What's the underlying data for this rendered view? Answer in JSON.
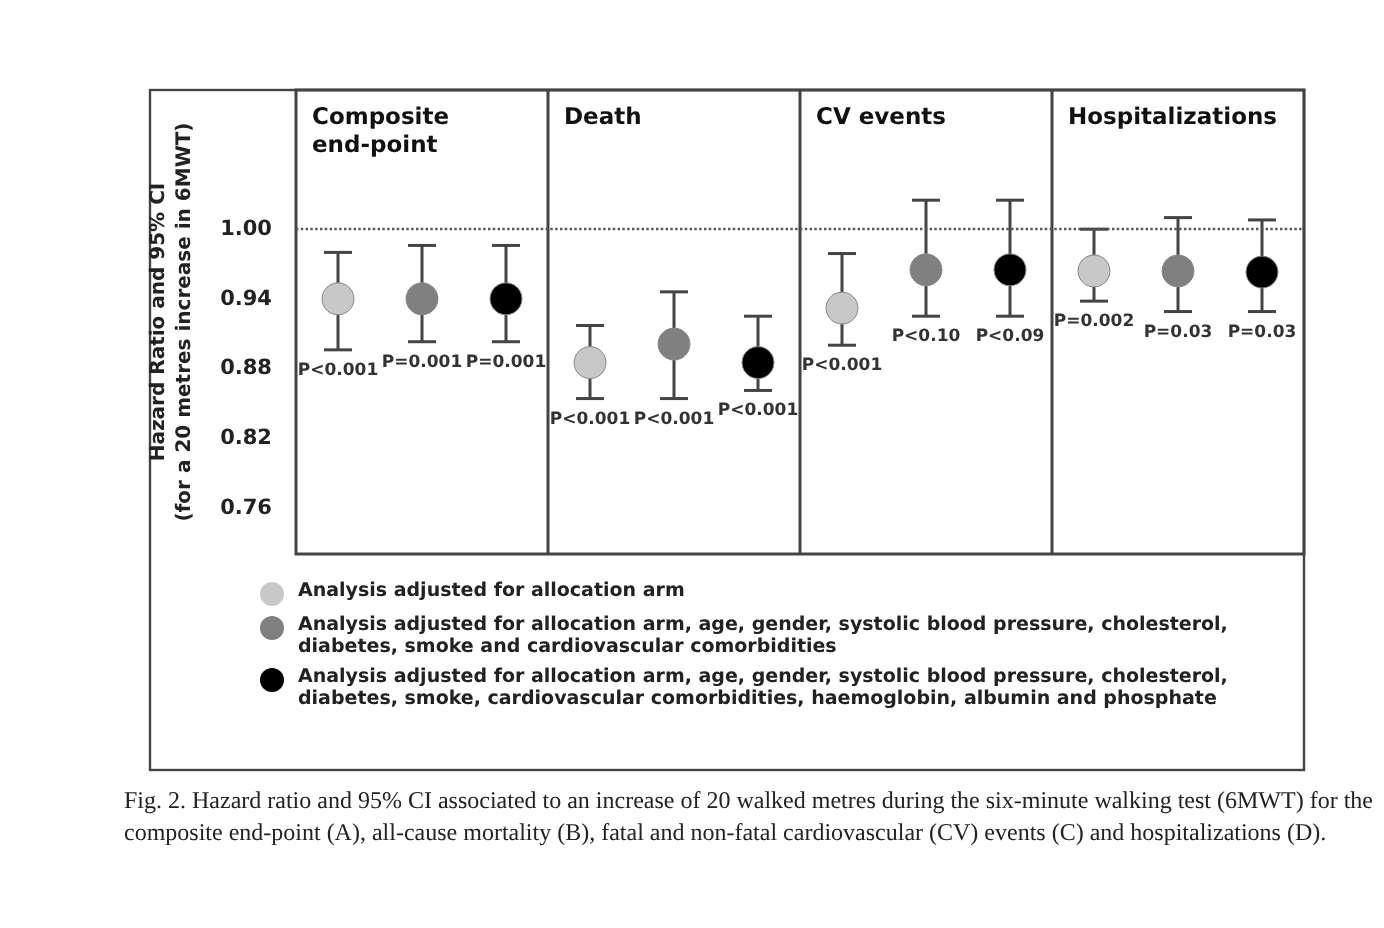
{
  "chart_data": {
    "type": "scatter",
    "ylabel": "Hazard Ratio and 95% CI\n(for a 20 metres increase in 6MWT)",
    "categories": [
      null,
      null,
      null,
      null,
      null,
      null,
      null,
      null,
      null,
      null,
      null,
      null
    ],
    "ylim": [
      0.72,
      1.12
    ],
    "yticks": [
      0.76,
      0.82,
      0.88,
      0.94,
      {
        "value": 1,
        "label": "1.00"
      }
    ],
    "grid": false,
    "legend": "bottom",
    "marker": "circle",
    "ref_lines": [
      {
        "axis": "y",
        "value": 1,
        "label": null,
        "color": "#555555",
        "line_style": "dotted"
      }
    ],
    "series": [
      {
        "name": "Analysis adjusted for allocation arm",
        "color": "#c8c8c8",
        "values": [
          0.94,
          null,
          null,
          0.885,
          null,
          null,
          0.932,
          null,
          null,
          0.964,
          null,
          null
        ],
        "errors": [
          [
            0.896,
            0.98
          ],
          null,
          null,
          [
            0.854,
            0.917
          ],
          null,
          null,
          [
            0.9,
            0.979
          ],
          null,
          null,
          [
            0.938,
            1.0
          ],
          null,
          null
        ]
      },
      {
        "name": "Analysis adjusted for allocation arm, age, gender, systolic blood pressure, cholesterol, diabetes, smoke and cardiovascular comorbidities",
        "color": "#808080",
        "values": [
          null,
          0.94,
          null,
          null,
          0.901,
          null,
          null,
          0.965,
          null,
          null,
          0.964,
          null
        ],
        "errors": [
          null,
          [
            0.903,
            0.986
          ],
          null,
          null,
          [
            0.854,
            0.946
          ],
          null,
          null,
          [
            0.925,
            1.025
          ],
          null,
          null,
          [
            0.929,
            1.01
          ],
          null
        ]
      },
      {
        "name": "Analysis adjusted for allocation arm, age, gender, systolic blood pressure, cholesterol, diabetes, smoke, cardiovascular comorbidities, haemoglobin, albumin and phosphate",
        "color": "#000000",
        "values": [
          null,
          null,
          0.94,
          null,
          null,
          0.885,
          null,
          null,
          0.965,
          null,
          null,
          0.963
        ],
        "errors": [
          null,
          null,
          [
            0.903,
            0.986
          ],
          null,
          null,
          [
            0.861,
            0.925
          ],
          null,
          null,
          [
            0.925,
            1.025
          ],
          null,
          null,
          [
            0.929,
            1.008
          ]
        ]
      }
    ],
    "annotations": [
      "Composite end-point",
      "Death",
      "CV events",
      "Hospitalizations",
      "P<0.001",
      "P=0.001",
      "P=0.001",
      "P<0.001",
      "P<0.001",
      "P<0.001",
      "P<0.001",
      "P<0.10",
      "P<0.09",
      "P=0.002",
      "P=0.03",
      "P=0.03",
      "Fig. 2. Hazard ratio and 95% CI associated to an increase of 20 walked metres during the six-minute walking test (6MWT) for the composite end-point (A), all-cause mortality (B), fatal and non-fatal cardiovascular (CV) events (C) and hospitalizations (D)."
    ]
  }
}
